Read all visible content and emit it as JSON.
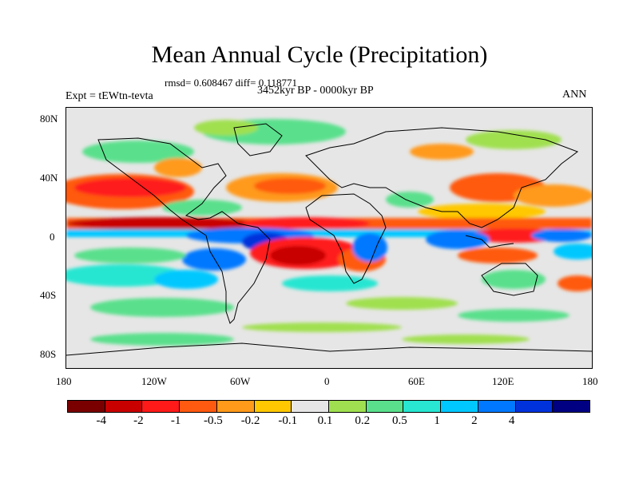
{
  "title": "Mean Annual Cycle (Precipitation)",
  "stats": "rmsd= 0.608467 diff= 0.118771",
  "experiment": "Expt = tEWtn-tevta",
  "period": "3452kyr BP - 0000kyr BP",
  "season": "ANN",
  "y_ticks": [
    "80N",
    "40N",
    "0",
    "40S",
    "80S"
  ],
  "x_ticks": [
    "180",
    "120W",
    "60W",
    "0",
    "60E",
    "120E",
    "180"
  ],
  "colorbar": {
    "colors": [
      "#7a0000",
      "#c80000",
      "#ff1a1a",
      "#ff5a10",
      "#ff9a1a",
      "#ffc800",
      "#e6e6e6",
      "#a0e050",
      "#5ae08c",
      "#28e6d2",
      "#00c8ff",
      "#0078ff",
      "#0032dc",
      "#000082"
    ],
    "labels": [
      "-4",
      "-2",
      "-1",
      "-0.5",
      "-0.2",
      "-0.1",
      "0.1",
      "0.2",
      "0.5",
      "1",
      "2",
      "4"
    ]
  }
}
